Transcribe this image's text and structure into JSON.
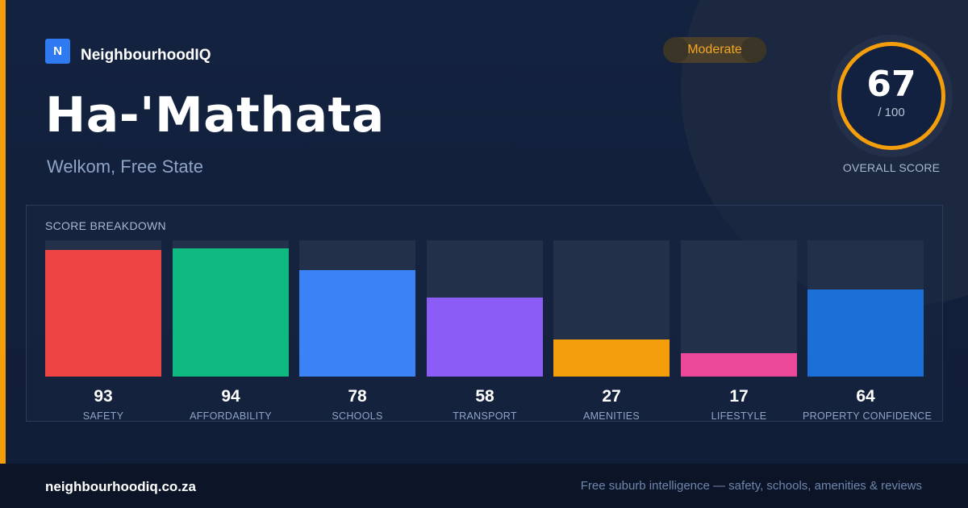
{
  "brand": {
    "logo_letter": "N",
    "name": "NeighbourhoodIQ"
  },
  "suburb": {
    "name": "Ha-'Mathata",
    "location": "Welkom, Free State"
  },
  "rating": {
    "label": "Moderate"
  },
  "overall": {
    "score": "67",
    "max": "/ 100",
    "caption": "OVERALL SCORE"
  },
  "breakdown": {
    "title": "SCORE BREAKDOWN",
    "items": [
      {
        "label": "SAFETY",
        "value": 93,
        "value_text": "93",
        "color": "#ef4444"
      },
      {
        "label": "AFFORDABILITY",
        "value": 94,
        "value_text": "94",
        "color": "#10b981"
      },
      {
        "label": "SCHOOLS",
        "value": 78,
        "value_text": "78",
        "color": "#3b82f6"
      },
      {
        "label": "TRANSPORT",
        "value": 58,
        "value_text": "58",
        "color": "#8b5cf6"
      },
      {
        "label": "AMENITIES",
        "value": 27,
        "value_text": "27",
        "color": "#f59e0b"
      },
      {
        "label": "LIFESTYLE",
        "value": 17,
        "value_text": "17",
        "color": "#ec4899"
      },
      {
        "label": "PROPERTY CONFIDENCE",
        "value": 64,
        "value_text": "64",
        "color": "#1d6fd8"
      }
    ]
  },
  "footer": {
    "url": "neighbourhoodiq.co.za",
    "tagline": "Free suburb intelligence — safety, schools, amenities & reviews"
  },
  "colors": {
    "accent": "#f59e0b",
    "background": "#111d37"
  }
}
